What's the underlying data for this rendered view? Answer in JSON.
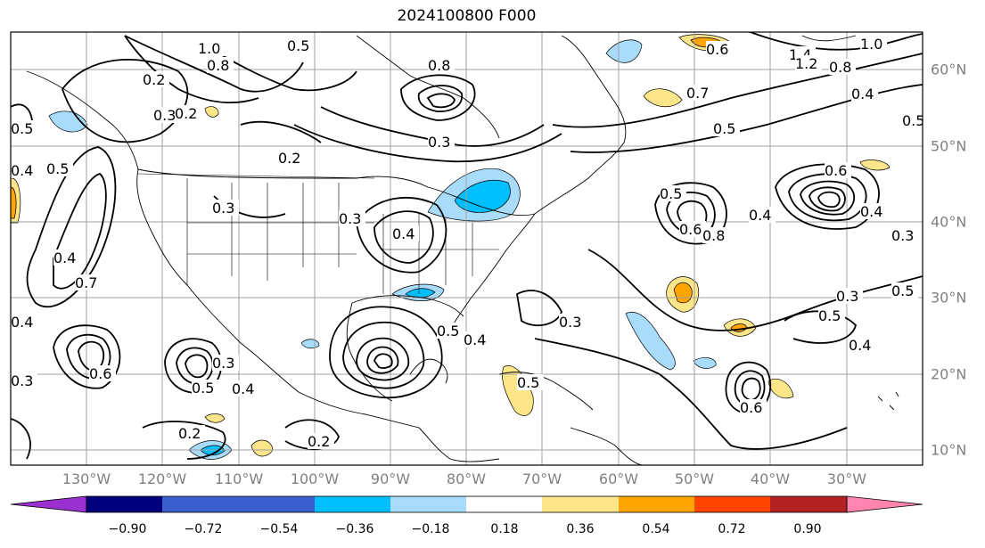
{
  "title": "2024100800 F000",
  "map": {
    "longitude_labels": [
      "130°W",
      "120°W",
      "110°W",
      "100°W",
      "90°W",
      "80°W",
      "70°W",
      "60°W",
      "50°W",
      "40°W",
      "30°W"
    ],
    "latitude_labels": [
      "60°N",
      "50°N",
      "40°N",
      "30°N",
      "20°N",
      "10°N"
    ],
    "contour_labels": [
      "1.0",
      "0.8",
      "0.2",
      "0.3",
      "0.2",
      "0.5",
      "0.5",
      "0.8",
      "0.6",
      "1.4",
      "1.2",
      "0.8",
      "1.0",
      "0.4",
      "0.7",
      "0.5",
      "0.5",
      "0.5",
      "0.3",
      "0.2",
      "0.3",
      "0.4",
      "0.3",
      "0.6",
      "0.4",
      "0.4",
      "0.7",
      "0.5",
      "0.6",
      "0.8",
      "0.4",
      "0.3",
      "0.3",
      "0.5",
      "0.5",
      "0.4",
      "0.3",
      "0.6",
      "0.4",
      "0.5",
      "0.6",
      "0.3",
      "0.5",
      "0.4",
      "0.3",
      "0.4",
      "0.5",
      "0.2",
      "0.2",
      "0.4"
    ],
    "colors": {
      "grid": "#a0a0a0",
      "contour": "#000000",
      "coast": "#000000",
      "positive_light": "#fde68a",
      "positive_orange": "#ffa500",
      "negative_light": "#a8dcfa",
      "negative_cyan": "#00bfff"
    }
  },
  "colorbar": {
    "tick_labels": [
      "−0.90",
      "−0.72",
      "−0.54",
      "−0.36",
      "−0.18",
      "0.18",
      "0.36",
      "0.54",
      "0.72",
      "0.90"
    ],
    "bin_colors": [
      "#9b30d0",
      "#00007f",
      "#3a5fcd",
      "#00bfff",
      "#a8dcfa",
      "#ffffff",
      "#fde68a",
      "#ffa500",
      "#ff4500",
      "#b22222",
      "#ff85b0"
    ]
  }
}
